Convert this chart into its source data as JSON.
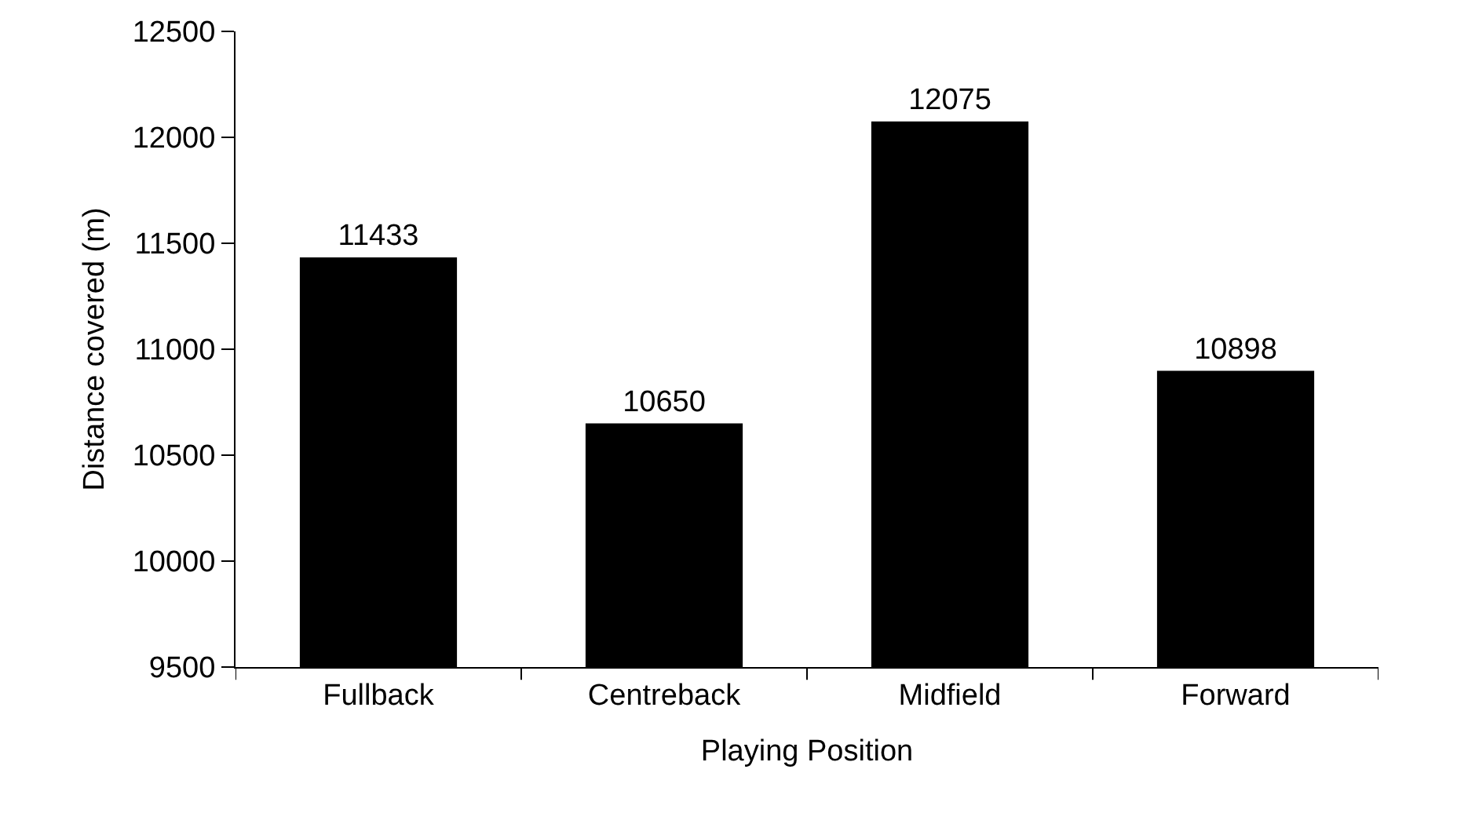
{
  "chart_data": {
    "type": "bar",
    "xlabel": "Playing Position",
    "ylabel": "Distance covered (m)",
    "categories": [
      "Fullback",
      "Centreback",
      "Midfield",
      "Forward"
    ],
    "values": [
      11433,
      10650,
      12075,
      10898
    ],
    "color": "#000000",
    "ylim": [
      9500,
      12500
    ],
    "yticks": [
      9500,
      10000,
      10500,
      11000,
      11500,
      12000,
      12500
    ],
    "data_labels": true
  }
}
